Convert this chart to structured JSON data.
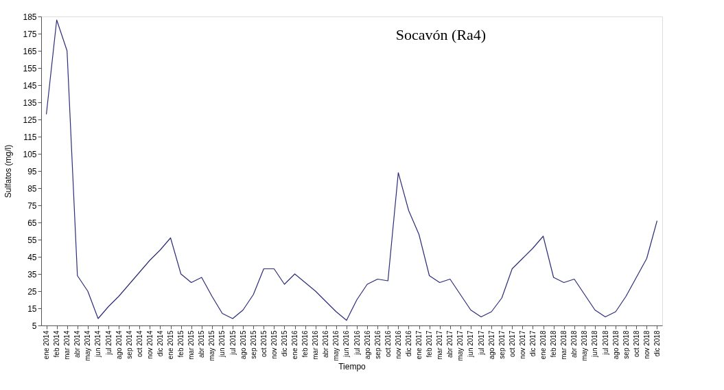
{
  "chart_data": {
    "type": "line",
    "title": "Socavón (Ra4)",
    "xlabel": "Tiempo",
    "ylabel": "Sulfatos (mg/l)",
    "categories": [
      "ene 2014",
      "feb 2014",
      "mar 2014",
      "abr 2014",
      "may 2014",
      "jun 2014",
      "jul 2014",
      "ago 2014",
      "sep 2014",
      "oct 2014",
      "nov 2014",
      "dic 2014",
      "ene 2015",
      "feb 2015",
      "mar 2015",
      "abr 2015",
      "may 2015",
      "jun 2015",
      "jul 2015",
      "ago 2015",
      "sep 2015",
      "oct 2015",
      "nov 2015",
      "dic 2015",
      "ene 2016",
      "feb 2016",
      "mar 2016",
      "abr 2016",
      "may 2016",
      "jun 2016",
      "jul 2016",
      "ago 2016",
      "sep 2016",
      "oct 2016",
      "nov 2016",
      "dic 2016",
      "ene 2017",
      "feb 2017",
      "mar 2017",
      "abr 2017",
      "may 2017",
      "jun 2017",
      "jul 2017",
      "ago 2017",
      "sep 2017",
      "oct 2017",
      "nov 2017",
      "dic 2017",
      "ene 2018",
      "feb 2018",
      "mar 2018",
      "abr 2018",
      "may 2018",
      "jun 2018",
      "jul 2018",
      "ago 2018",
      "sep 2018",
      "oct 2018",
      "nov 2018",
      "dic 2018"
    ],
    "series": [
      {
        "color": "#2b2b7a",
        "values": [
          128,
          183,
          165,
          34,
          25,
          9,
          16,
          22,
          29,
          36,
          43,
          49,
          56,
          35,
          30,
          33,
          22,
          12,
          9,
          14,
          23,
          38,
          38,
          29,
          35,
          30,
          25,
          19,
          13,
          8,
          20,
          29,
          32,
          31,
          94,
          72,
          58,
          34,
          30,
          32,
          23,
          14,
          10,
          13,
          21,
          38,
          44,
          50,
          57,
          33,
          30,
          32,
          23,
          14,
          10,
          13,
          22,
          33,
          44,
          66
        ]
      }
    ],
    "ylim": [
      5,
      185
    ],
    "yticks": [
      5,
      15,
      25,
      35,
      45,
      55,
      65,
      75,
      85,
      95,
      105,
      115,
      125,
      135,
      145,
      155,
      165,
      175,
      185
    ],
    "grid": false,
    "legend": false,
    "marker": "none",
    "line_style": "solid"
  }
}
